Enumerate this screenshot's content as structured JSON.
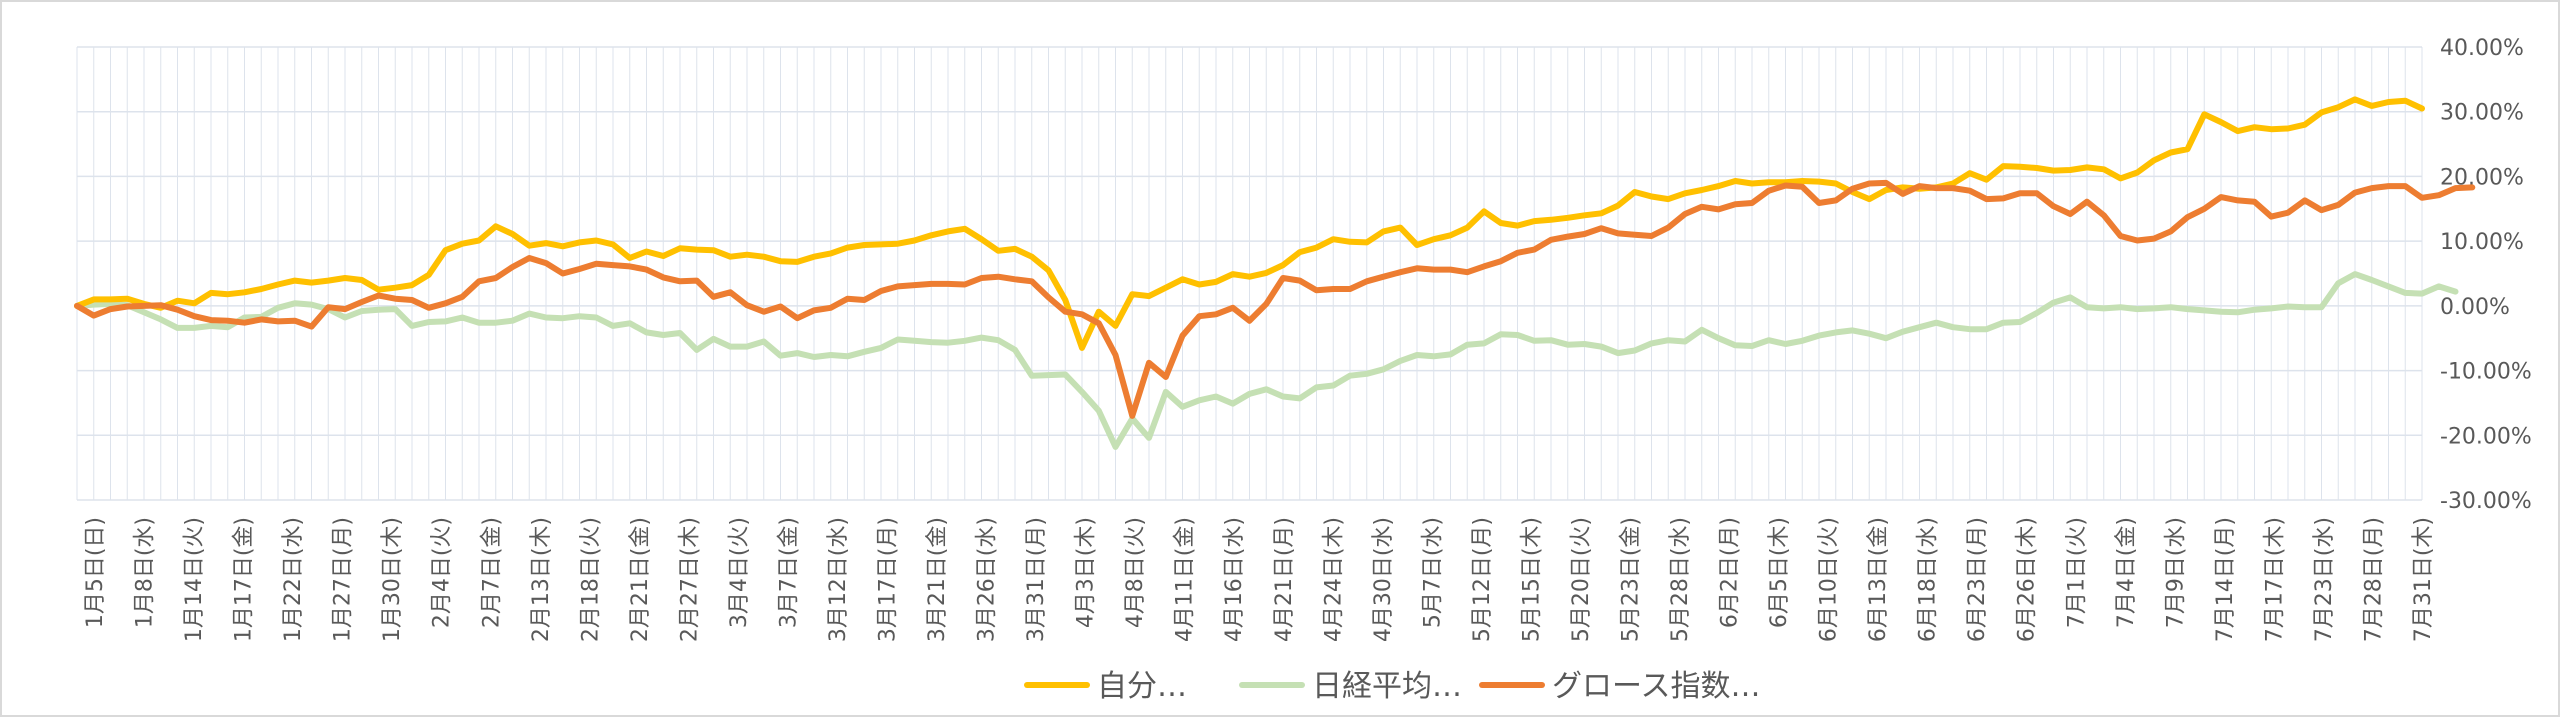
{
  "chart_data": {
    "type": "line",
    "title": "",
    "xlabel": "",
    "ylabel": "",
    "ylim": [
      -30,
      40
    ],
    "y_ticks": [
      "-30.00%",
      "-20.00%",
      "-10.00%",
      "0.00%",
      "10.00%",
      "20.00%",
      "30.00%",
      "40.00%"
    ],
    "y_tick_values": [
      -30,
      -20,
      -10,
      0,
      10,
      20,
      30,
      40
    ],
    "y_axis_side": "right",
    "grid": true,
    "legend_position": "bottom",
    "x_tick_labels": [
      "1月5日(日)",
      "1月8日(水)",
      "1月14日(火)",
      "1月17日(金)",
      "1月22日(水)",
      "1月27日(月)",
      "1月30日(木)",
      "2月4日(火)",
      "2月7日(金)",
      "2月13日(木)",
      "2月18日(火)",
      "2月21日(金)",
      "2月27日(木)",
      "3月4日(火)",
      "3月7日(金)",
      "3月12日(水)",
      "3月17日(月)",
      "3月21日(金)",
      "3月26日(水)",
      "3月31日(月)",
      "4月3日(木)",
      "4月8日(火)",
      "4月11日(金)",
      "4月16日(水)",
      "4月21日(月)",
      "4月24日(木)",
      "4月30日(水)",
      "5月7日(水)",
      "5月12日(月)",
      "5月15日(木)",
      "5月20日(火)",
      "5月23日(金)",
      "5月28日(水)",
      "6月2日(月)",
      "6月5日(木)",
      "6月10日(火)",
      "6月13日(金)",
      "6月18日(水)",
      "6月23日(月)",
      "6月26日(木)",
      "7月1日(火)",
      "7月4日(金)",
      "7月9日(水)",
      "7月14日(月)",
      "7月17日(木)",
      "7月23日(水)",
      "7月28日(月)",
      "7月31日(木)"
    ],
    "colors": {
      "series1": "#FFC000",
      "series2": "#C5E0B4",
      "series3": "#ED7D31",
      "grid": "#dde3ec",
      "tick_text": "#595959"
    },
    "series": [
      {
        "name": "自分…",
        "values": [
          0,
          1,
          1,
          1.1,
          0.3,
          -0.3,
          0.8,
          0.4,
          2,
          1.8,
          2.1,
          2.6,
          3.3,
          3.9,
          3.6,
          3.9,
          4.3,
          4,
          2.5,
          2.8,
          3.2,
          4.8,
          8.6,
          9.6,
          10.1,
          12.3,
          11.1,
          9.3,
          9.7,
          9.2,
          9.8,
          10.1,
          9.5,
          7.4,
          8.4,
          7.7,
          8.9,
          8.7,
          8.6,
          7.6,
          7.9,
          7.6,
          6.9,
          6.8,
          7.6,
          8.1,
          9,
          9.4,
          9.5,
          9.6,
          10.1,
          10.9,
          11.5,
          11.9,
          10.3,
          8.5,
          8.8,
          7.6,
          5.5,
          0.9,
          -6.5,
          -0.9,
          -3.1,
          1.8,
          1.5,
          2.8,
          4.1,
          3.3,
          3.7,
          4.9,
          4.5,
          5.1,
          6.3,
          8.3,
          9,
          10.3,
          9.9,
          9.8,
          11.5,
          12.1,
          9.4,
          10.3,
          10.9,
          12.1,
          14.6,
          12.8,
          12.4,
          13.1,
          13.3,
          13.6,
          14,
          14.3,
          15.5,
          17.6,
          16.9,
          16.5,
          17.4,
          17.9,
          18.5,
          19.3,
          18.9,
          19.1,
          19.1,
          19.3,
          19.2,
          18.9,
          17.6,
          16.5,
          17.9,
          18.3,
          18.1,
          18.3,
          18.9,
          20.5,
          19.5,
          21.6,
          21.5,
          21.3,
          20.9,
          21,
          21.4,
          21.1,
          19.7,
          20.6,
          22.5,
          23.7,
          24.2,
          29.6,
          28.4,
          27,
          27.6,
          27.3,
          27.4,
          28,
          29.9,
          30.7,
          31.9,
          30.9,
          31.5,
          31.7,
          30.5
        ]
      },
      {
        "name": "日経平均…",
        "values": [
          0,
          0.2,
          0.3,
          0.1,
          -1,
          -2.1,
          -3.4,
          -3.4,
          -3.1,
          -3.3,
          -1.8,
          -1.7,
          -0.3,
          0.4,
          0.2,
          -0.5,
          -1.8,
          -0.8,
          -0.6,
          -0.5,
          -3.1,
          -2.5,
          -2.4,
          -1.8,
          -2.6,
          -2.6,
          -2.3,
          -1.2,
          -1.8,
          -1.9,
          -1.6,
          -1.8,
          -3.1,
          -2.7,
          -4.1,
          -4.5,
          -4.2,
          -6.8,
          -5.1,
          -6.3,
          -6.3,
          -5.5,
          -7.7,
          -7.3,
          -7.9,
          -7.6,
          -7.8,
          -7.1,
          -6.5,
          -5.2,
          -5.4,
          -5.6,
          -5.7,
          -5.4,
          -4.9,
          -5.3,
          -6.8,
          -10.8,
          -10.7,
          -10.6,
          -13.3,
          -16.2,
          -21.8,
          -17.4,
          -20.4,
          -13.3,
          -15.6,
          -14.6,
          -14,
          -15.1,
          -13.6,
          -12.9,
          -14,
          -14.3,
          -12.6,
          -12.3,
          -10.8,
          -10.5,
          -9.8,
          -8.5,
          -7.6,
          -7.8,
          -7.5,
          -6,
          -5.8,
          -4.4,
          -4.5,
          -5.4,
          -5.3,
          -6,
          -5.9,
          -6.3,
          -7.3,
          -6.9,
          -5.8,
          -5.3,
          -5.5,
          -3.7,
          -5,
          -6.1,
          -6.2,
          -5.3,
          -5.9,
          -5.4,
          -4.6,
          -4.1,
          -3.8,
          -4.3,
          -5,
          -4,
          -3.3,
          -2.6,
          -3.3,
          -3.6,
          -3.6,
          -2.6,
          -2.5,
          -1.1,
          0.5,
          1.3,
          -0.2,
          -0.4,
          -0.2,
          -0.5,
          -0.4,
          -0.2,
          -0.5,
          -0.7,
          -0.9,
          -1,
          -0.6,
          -0.4,
          -0.1,
          -0.2,
          -0.2,
          3.5,
          4.9,
          4,
          3,
          2,
          1.9,
          3,
          2.2
        ]
      },
      {
        "name": "グロース指数…",
        "values": [
          0,
          -1.5,
          -0.5,
          -0.1,
          0,
          0.1,
          -0.6,
          -1.6,
          -2.2,
          -2.3,
          -2.6,
          -2.1,
          -2.4,
          -2.3,
          -3.2,
          -0.2,
          -0.5,
          0.6,
          1.6,
          1.1,
          0.9,
          -0.3,
          0.4,
          1.4,
          3.8,
          4.3,
          6,
          7.4,
          6.6,
          5,
          5.7,
          6.5,
          6.3,
          6.1,
          5.6,
          4.4,
          3.8,
          3.9,
          1.4,
          2.1,
          0.1,
          -0.9,
          -0.1,
          -1.9,
          -0.7,
          -0.3,
          1.1,
          0.9,
          2.3,
          3,
          3.2,
          3.4,
          3.4,
          3.3,
          4.3,
          4.5,
          4.1,
          3.8,
          1.3,
          -0.9,
          -1.3,
          -2.7,
          -7.6,
          -17,
          -8.8,
          -11,
          -4.6,
          -1.6,
          -1.3,
          -0.3,
          -2.3,
          0.3,
          4.3,
          3.9,
          2.4,
          2.6,
          2.6,
          3.8,
          4.5,
          5.2,
          5.8,
          5.6,
          5.6,
          5.2,
          6.1,
          6.9,
          8.2,
          8.7,
          10.2,
          10.7,
          11.1,
          12,
          11.2,
          11,
          10.8,
          12.1,
          14.2,
          15.3,
          14.9,
          15.7,
          15.9,
          17.8,
          18.6,
          18.4,
          15.9,
          16.3,
          18.1,
          18.9,
          19,
          17.3,
          18.5,
          18.2,
          18.2,
          17.8,
          16.5,
          16.6,
          17.4,
          17.4,
          15.4,
          14.2,
          16.1,
          14,
          10.8,
          10.1,
          10.4,
          11.5,
          13.7,
          15,
          16.8,
          16.3,
          16.1,
          13.8,
          14.4,
          16.3,
          14.8,
          15.6,
          17.5,
          18.2,
          18.5,
          18.5,
          16.7,
          17.1,
          18.2,
          18.3
        ]
      }
    ]
  }
}
